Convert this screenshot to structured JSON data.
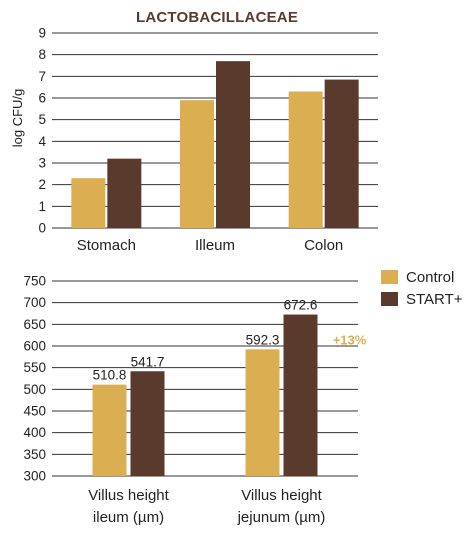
{
  "colors": {
    "control": "#dcae52",
    "start": "#5a3a2c",
    "grid": "#333333",
    "annotation": "#dcae52"
  },
  "legend": {
    "position": "right",
    "items": [
      "Control",
      "START+"
    ]
  },
  "chart_data": [
    {
      "type": "bar",
      "title": "LACTOBACILLACEAE",
      "ylabel": "log CFU/g",
      "xlabel": "",
      "ylim": [
        0,
        9
      ],
      "yticks": [
        0,
        1,
        2,
        3,
        4,
        5,
        6,
        7,
        8,
        9
      ],
      "grid": true,
      "categories": [
        "Stomach",
        "Illeum",
        "Colon"
      ],
      "series": [
        {
          "name": "Control",
          "values": [
            2.3,
            5.9,
            6.3
          ]
        },
        {
          "name": "START+",
          "values": [
            3.2,
            7.7,
            6.85
          ]
        }
      ]
    },
    {
      "type": "bar",
      "title": "",
      "ylabel": "",
      "xlabel": "",
      "ylim": [
        300,
        750
      ],
      "yticks": [
        300,
        350,
        400,
        450,
        500,
        550,
        600,
        650,
        700,
        750
      ],
      "grid": true,
      "categories": [
        [
          "Villus height",
          "ileum (µm)"
        ],
        [
          "Villus height",
          "jejunum (µm)"
        ]
      ],
      "series": [
        {
          "name": "Control",
          "values": [
            510.8,
            592.3
          ],
          "labels": [
            "510.8",
            "592.3"
          ]
        },
        {
          "name": "START+",
          "values": [
            541.7,
            672.6
          ],
          "labels": [
            "541.7",
            "672.6"
          ]
        }
      ],
      "annotations": [
        {
          "category_index": 1,
          "text": "+13%"
        }
      ]
    }
  ]
}
